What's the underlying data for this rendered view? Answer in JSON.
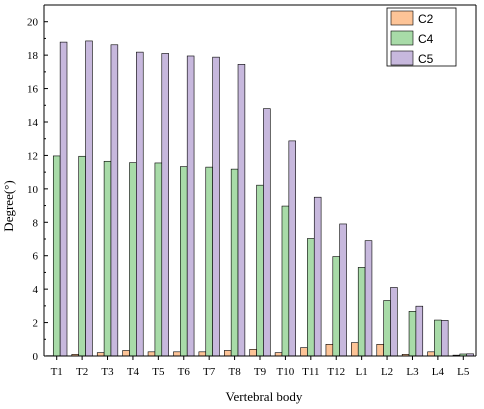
{
  "chart_data": {
    "type": "bar",
    "xlabel": "Vertebral body",
    "ylabel": "Degree(°)",
    "ylim": [
      0,
      21
    ],
    "yticks": [
      0,
      2,
      4,
      6,
      8,
      10,
      12,
      14,
      16,
      18,
      20
    ],
    "grid": false,
    "legend_position": "top-right",
    "categories": [
      "T1",
      "T2",
      "T3",
      "T4",
      "T5",
      "T6",
      "T7",
      "T8",
      "T9",
      "T10",
      "T11",
      "T12",
      "L1",
      "L2",
      "L3",
      "L4",
      "L5"
    ],
    "series": [
      {
        "name": "C2",
        "color": "#fdc497",
        "values": [
          0.02,
          0.1,
          0.2,
          0.33,
          0.25,
          0.25,
          0.25,
          0.33,
          0.4,
          0.2,
          0.5,
          0.7,
          0.8,
          0.7,
          0.1,
          0.25,
          0.05
        ]
      },
      {
        "name": "C4",
        "color": "#a8dba8",
        "values": [
          11.97,
          11.95,
          11.65,
          11.57,
          11.55,
          11.33,
          11.3,
          11.18,
          10.22,
          8.97,
          7.03,
          5.95,
          5.3,
          3.32,
          2.67,
          2.15,
          0.12
        ]
      },
      {
        "name": "C5",
        "color": "#c7b8dd",
        "values": [
          18.78,
          18.85,
          18.62,
          18.18,
          18.1,
          17.95,
          17.88,
          17.45,
          14.8,
          12.87,
          9.5,
          7.9,
          6.9,
          4.1,
          2.98,
          2.13,
          0.13
        ]
      }
    ]
  }
}
